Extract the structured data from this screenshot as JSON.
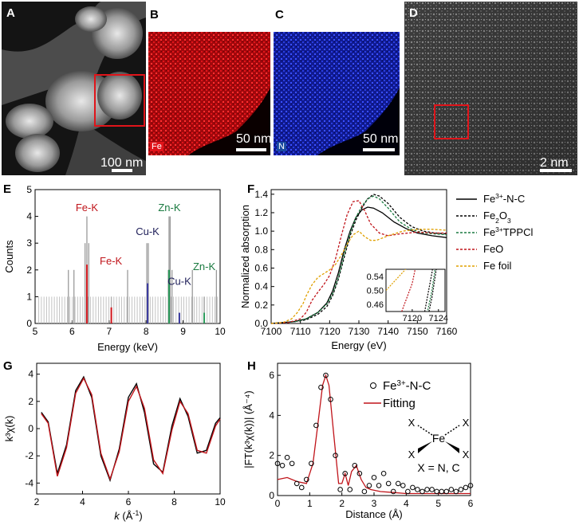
{
  "panels": {
    "A": {
      "label": "A",
      "scalebar": "100 nm"
    },
    "B": {
      "label": "B",
      "scalebar": "50 nm",
      "element": "Fe",
      "color": "#e0141a"
    },
    "C": {
      "label": "C",
      "scalebar": "50 nm",
      "element": "N",
      "color": "#1a2fd6"
    },
    "D": {
      "label": "D",
      "scalebar": "2 nm"
    },
    "E": {
      "label": "E"
    },
    "F": {
      "label": "F"
    },
    "G": {
      "label": "G"
    },
    "H": {
      "label": "H"
    }
  },
  "chart_data": [
    {
      "panel": "E",
      "type": "bar",
      "xlabel": "Energy (keV)",
      "ylabel": "Counts",
      "xlim": [
        5,
        10
      ],
      "ylim": [
        0,
        5
      ],
      "xticks": [
        "5",
        "6",
        "7",
        "8",
        "9",
        "10"
      ],
      "yticks": [
        "0",
        "1",
        "2",
        "3",
        "4",
        "5"
      ],
      "annotations": [
        {
          "text": "Fe-K",
          "x": 6.4,
          "y": 4.2,
          "color": "#c0141a"
        },
        {
          "text": "Fe-K",
          "x": 7.05,
          "y": 2.2,
          "color": "#c0141a"
        },
        {
          "text": "Cu-K",
          "x": 8.04,
          "y": 3.3,
          "color": "#20205a"
        },
        {
          "text": "Zn-K",
          "x": 8.63,
          "y": 4.2,
          "color": "#1a7a40"
        },
        {
          "text": "Zn-K",
          "x": 9.57,
          "y": 2.0,
          "color": "#1a7a40"
        },
        {
          "text": "Cu-K",
          "x": 8.9,
          "y": 1.45,
          "color": "#20205a"
        }
      ],
      "gray_peaks": [
        {
          "x": 6.4,
          "y": 4
        },
        {
          "x": 6.45,
          "y": 3
        },
        {
          "x": 6.35,
          "y": 3
        },
        {
          "x": 7.06,
          "y": 1
        },
        {
          "x": 8.02,
          "y": 3
        },
        {
          "x": 8.06,
          "y": 3
        },
        {
          "x": 8.62,
          "y": 4
        },
        {
          "x": 8.65,
          "y": 4
        },
        {
          "x": 8.6,
          "y": 2
        },
        {
          "x": 8.7,
          "y": 2
        },
        {
          "x": 9.57,
          "y": 1
        },
        {
          "x": 5.9,
          "y": 2
        },
        {
          "x": 7.5,
          "y": 2
        },
        {
          "x": 9.25,
          "y": 2
        },
        {
          "x": 9.9,
          "y": 2
        },
        {
          "x": 6.05,
          "y": 2
        }
      ],
      "colored_peaks": [
        {
          "x": 6.4,
          "y": 2.2,
          "color": "#d0141a"
        },
        {
          "x": 7.06,
          "y": 0.6,
          "color": "#d0141a"
        },
        {
          "x": 8.04,
          "y": 1.5,
          "color": "#3a3aa0"
        },
        {
          "x": 8.9,
          "y": 0.4,
          "color": "#3a3aa0"
        },
        {
          "x": 8.62,
          "y": 2.0,
          "color": "#2a9a5a"
        },
        {
          "x": 9.57,
          "y": 0.4,
          "color": "#2a9a5a"
        }
      ]
    },
    {
      "panel": "F",
      "type": "line",
      "xlabel": "Energy (eV)",
      "ylabel": "Normalized absorption",
      "xlim": [
        7100,
        7160
      ],
      "ylim": [
        0,
        1.45
      ],
      "xticks": [
        "7100",
        "7110",
        "7120",
        "7130",
        "7140",
        "7150",
        "7160"
      ],
      "yticks": [
        "0.0",
        "0.2",
        "0.4",
        "0.6",
        "0.8",
        "1.0",
        "1.2",
        "1.4"
      ],
      "series": [
        {
          "name": "Fe3+-N-C",
          "name_main": "Fe",
          "name_sup": "3+",
          "name_rest": "-N-C",
          "color": "#000000",
          "dash": "",
          "x": [
            7100,
            7108,
            7112,
            7116,
            7119,
            7121,
            7123,
            7125,
            7127,
            7129,
            7131,
            7133,
            7135,
            7138,
            7142,
            7146,
            7150,
            7155,
            7160
          ],
          "y": [
            0,
            0.02,
            0.05,
            0.12,
            0.22,
            0.35,
            0.55,
            0.8,
            1.0,
            1.15,
            1.23,
            1.26,
            1.25,
            1.2,
            1.1,
            1.03,
            0.98,
            0.95,
            0.93
          ]
        },
        {
          "name": "Fe2O3",
          "name_main": "Fe",
          "name_sub": "2",
          "name_rest": "O",
          "name_sub2": "3",
          "color": "#000000",
          "dash": "3,2",
          "x": [
            7100,
            7108,
            7112,
            7116,
            7119,
            7121,
            7123,
            7125,
            7127,
            7129,
            7131,
            7133,
            7135,
            7137,
            7140,
            7144,
            7148,
            7152,
            7156,
            7160
          ],
          "y": [
            0,
            0.02,
            0.04,
            0.1,
            0.18,
            0.3,
            0.48,
            0.72,
            0.95,
            1.12,
            1.25,
            1.35,
            1.4,
            1.38,
            1.3,
            1.15,
            1.05,
            1.0,
            0.98,
            0.97
          ]
        },
        {
          "name": "Fe3+TPPCl",
          "name_main": "Fe",
          "name_sup": "3+",
          "name_rest": "TPPCl",
          "color": "#1a7a40",
          "dash": "3,2",
          "x": [
            7100,
            7108,
            7112,
            7116,
            7119,
            7121,
            7123,
            7125,
            7127,
            7129,
            7131,
            7133,
            7135,
            7137,
            7140,
            7144,
            7148,
            7152,
            7156,
            7160
          ],
          "y": [
            0,
            0.02,
            0.05,
            0.12,
            0.21,
            0.32,
            0.5,
            0.75,
            0.98,
            1.15,
            1.27,
            1.35,
            1.38,
            1.35,
            1.25,
            1.1,
            1.02,
            0.98,
            0.97,
            0.96
          ]
        },
        {
          "name": "FeO",
          "color": "#c0141a",
          "dash": "3,2",
          "x": [
            7100,
            7106,
            7110,
            7112,
            7114,
            7116,
            7118,
            7120,
            7122,
            7124,
            7126,
            7128,
            7130,
            7132,
            7134,
            7137,
            7140,
            7144,
            7150,
            7155,
            7160
          ],
          "y": [
            0,
            0.01,
            0.05,
            0.12,
            0.25,
            0.34,
            0.42,
            0.52,
            0.7,
            0.95,
            1.18,
            1.32,
            1.33,
            1.22,
            1.08,
            0.98,
            0.95,
            0.97,
            0.99,
            0.98,
            0.98
          ]
        },
        {
          "name": "Fe foil",
          "color": "#e0a000",
          "dash": "3,2",
          "x": [
            7100,
            7104,
            7107,
            7109,
            7111,
            7112,
            7114,
            7116,
            7118,
            7120,
            7122,
            7124,
            7126,
            7128,
            7130,
            7132,
            7134,
            7136,
            7140,
            7145,
            7150,
            7155,
            7160
          ],
          "y": [
            0,
            0.01,
            0.05,
            0.12,
            0.22,
            0.3,
            0.42,
            0.5,
            0.54,
            0.58,
            0.64,
            0.74,
            0.86,
            0.96,
            1.0,
            0.94,
            0.9,
            0.9,
            0.95,
            1.0,
            1.02,
            1.02,
            1.01
          ]
        }
      ],
      "inset": {
        "xlim": [
          7116,
          7125
        ],
        "ylim": [
          0.44,
          0.56
        ],
        "xticks": [
          "7120",
          "7124"
        ],
        "yticks": [
          "0.46",
          "0.50",
          "0.54"
        ]
      }
    },
    {
      "panel": "G",
      "type": "line",
      "xlabel": "k (Å⁻¹)",
      "xlabel_main": "k",
      "xlabel_rest": " (Å",
      "xlabel_sup": "-1",
      "xlabel_end": ")",
      "ylabel": "k³χ(k)",
      "xlim": [
        2,
        10
      ],
      "ylim": [
        -4.8,
        4.8
      ],
      "xticks": [
        "2",
        "4",
        "6",
        "8",
        "10"
      ],
      "yticks": [
        "-4",
        "-2",
        "0",
        "2",
        "4"
      ],
      "series": [
        {
          "name": "",
          "color": "#000000",
          "x": [
            2.2,
            2.5,
            2.9,
            3.3,
            3.7,
            4.05,
            4.4,
            4.8,
            5.2,
            5.6,
            6.0,
            6.35,
            6.7,
            7.1,
            7.5,
            7.9,
            8.25,
            8.6,
            9.0,
            9.4,
            9.8,
            10.0
          ],
          "y": [
            1.2,
            0.5,
            -3.3,
            -1.2,
            2.8,
            3.8,
            2.3,
            -2.0,
            -3.8,
            -1.5,
            2.3,
            3.3,
            1.2,
            -2.6,
            -3.2,
            0.2,
            2.2,
            0.9,
            -1.8,
            -1.6,
            0.4,
            0.8
          ]
        },
        {
          "name": "",
          "color": "#c0141a",
          "x": [
            2.2,
            2.5,
            2.9,
            3.3,
            3.7,
            4.05,
            4.4,
            4.8,
            5.2,
            5.6,
            6.0,
            6.35,
            6.7,
            7.1,
            7.5,
            7.9,
            8.25,
            8.6,
            9.0,
            9.4,
            9.8,
            10.0
          ],
          "y": [
            1.1,
            0.4,
            -3.5,
            -1.4,
            2.6,
            3.7,
            2.5,
            -1.8,
            -3.7,
            -1.7,
            2.0,
            3.1,
            1.5,
            -2.3,
            -3.3,
            -0.1,
            2.0,
            1.1,
            -1.6,
            -1.8,
            0.2,
            0.7
          ]
        }
      ]
    },
    {
      "panel": "H",
      "type": "line",
      "xlabel": "Distance (Å)",
      "ylabel": "|FT(k³χ(k))| (Å⁻⁴)",
      "xlim": [
        0,
        6
      ],
      "ylim": [
        0,
        6.6
      ],
      "xticks": [
        "0",
        "1",
        "2",
        "3",
        "4",
        "5",
        "6"
      ],
      "yticks": [
        "0",
        "2",
        "4",
        "6"
      ],
      "series": [
        {
          "name": "Fe3+-N-C",
          "name_main": "Fe",
          "name_sup": "3+",
          "name_rest": "-N-C",
          "marker": "circle",
          "color": "#000000",
          "x": [
            0,
            0.15,
            0.3,
            0.45,
            0.6,
            0.75,
            0.9,
            1.05,
            1.2,
            1.35,
            1.5,
            1.65,
            1.8,
            1.95,
            2.1,
            2.25,
            2.4,
            2.55,
            2.7,
            2.85,
            3.0,
            3.15,
            3.3,
            3.45,
            3.6,
            3.75,
            3.9,
            4.05,
            4.2,
            4.35,
            4.5,
            4.65,
            4.8,
            4.95,
            5.1,
            5.25,
            5.4,
            5.55,
            5.7,
            5.85,
            6.0
          ],
          "y": [
            1.6,
            1.5,
            1.9,
            1.6,
            0.6,
            0.4,
            0.8,
            1.6,
            3.5,
            5.4,
            6.0,
            4.8,
            2.0,
            0.3,
            1.1,
            0.3,
            1.5,
            1.1,
            0.2,
            0.5,
            0.9,
            0.5,
            1.1,
            0.6,
            0.2,
            0.6,
            0.5,
            0.2,
            0.4,
            0.3,
            0.2,
            0.3,
            0.3,
            0.2,
            0.2,
            0.2,
            0.3,
            0.2,
            0.3,
            0.4,
            0.5
          ]
        },
        {
          "name": "Fitting",
          "color": "#c0141a",
          "x": [
            0,
            0.3,
            0.6,
            0.9,
            1.1,
            1.25,
            1.4,
            1.5,
            1.6,
            1.75,
            1.9,
            2.0,
            2.1,
            2.2,
            2.3,
            2.45,
            2.6,
            2.75,
            2.9,
            3.2,
            3.6,
            4.0,
            4.5,
            5.0,
            5.5,
            6.0
          ],
          "y": [
            0.8,
            0.9,
            0.7,
            0.6,
            1.6,
            3.5,
            5.5,
            6.0,
            5.5,
            3.0,
            0.6,
            0.6,
            1.1,
            0.5,
            1.2,
            1.5,
            0.8,
            0.4,
            0.3,
            0.2,
            0.15,
            0.1,
            0.1,
            0.1,
            0.1,
            0.1
          ]
        }
      ],
      "structure": {
        "center": "Fe",
        "ligand": "X",
        "note": "X = N, C"
      }
    }
  ]
}
